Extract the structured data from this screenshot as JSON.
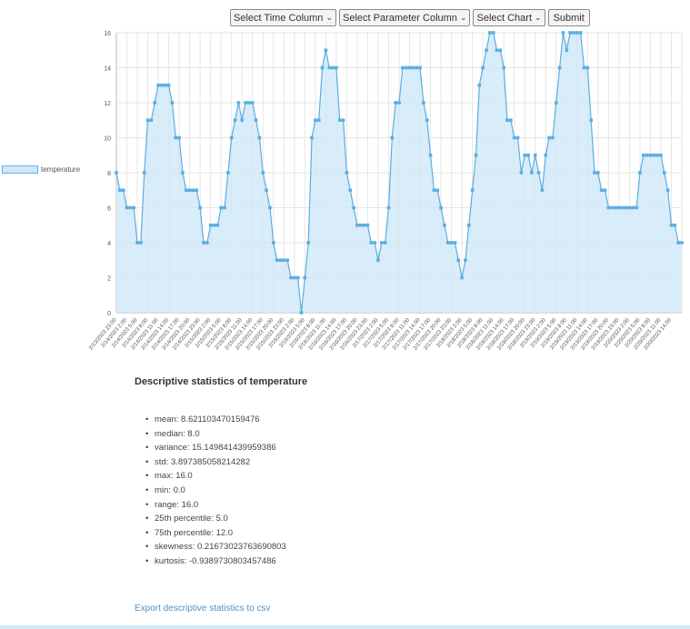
{
  "controls": {
    "time_select": "Select Time Column",
    "param_select": "Select Parameter Column",
    "chart_select": "Select Chart",
    "submit_label": "Submit"
  },
  "chart_data": {
    "type": "area",
    "series": [
      {
        "name": "temperature",
        "values": [
          8,
          7,
          7,
          6,
          6,
          6,
          4,
          4,
          8,
          11,
          11,
          12,
          13,
          13,
          13,
          13,
          12,
          10,
          10,
          8,
          7,
          7,
          7,
          7,
          6,
          4,
          4,
          5,
          5,
          5,
          6,
          6,
          8,
          10,
          11,
          12,
          11,
          12,
          12,
          12,
          11,
          10,
          8,
          7,
          6,
          4,
          3,
          3,
          3,
          3,
          2,
          2,
          2,
          0,
          2,
          4,
          10,
          11,
          11,
          14,
          15,
          14,
          14,
          14,
          11,
          11,
          8,
          7,
          6,
          5,
          5,
          5,
          5,
          4,
          4,
          3,
          4,
          4,
          6,
          10,
          12,
          12,
          14,
          14,
          14,
          14,
          14,
          14,
          12,
          11,
          9,
          7,
          7,
          6,
          5,
          4,
          4,
          4,
          3,
          2,
          3,
          5,
          7,
          9,
          13,
          14,
          15,
          16,
          16,
          15,
          15,
          14,
          11,
          11,
          10,
          10,
          8,
          9,
          9,
          8,
          9,
          8,
          7,
          9,
          10,
          10,
          12,
          14,
          16,
          15,
          16,
          16,
          16,
          16,
          14,
          14,
          11,
          8,
          8,
          7,
          7,
          6,
          6,
          6,
          6,
          6,
          6,
          6,
          6,
          6,
          8,
          9,
          9,
          9,
          9,
          9,
          9,
          8,
          7,
          5,
          5,
          4,
          4
        ]
      }
    ],
    "ylim": [
      0,
      16
    ],
    "y_ticks": [
      "0",
      "2",
      "4",
      "6",
      "8",
      "10",
      "12",
      "14",
      "16"
    ],
    "x_tick_labels": [
      "2/13/2023 23:00",
      "2/14/2023 2:00",
      "2/14/2023 5:00",
      "2/14/2023 8:00",
      "2/14/2023 11:00",
      "2/14/2023 14:00",
      "2/14/2023 17:00",
      "2/14/2023 20:00",
      "2/14/2023 23:00",
      "2/15/2023 2:00",
      "2/15/2023 5:00",
      "2/15/2023 8:00",
      "2/15/2023 11:00",
      "2/15/2023 14:00",
      "2/15/2023 17:00",
      "2/15/2023 20:00",
      "2/15/2023 23:00",
      "2/16/2023 2:00",
      "2/16/2023 5:00",
      "2/16/2023 8:00",
      "2/16/2023 11:00",
      "2/16/2023 14:00",
      "2/16/2023 17:00",
      "2/16/2023 20:00",
      "2/16/2023 23:00",
      "2/17/2023 2:00",
      "2/17/2023 5:00",
      "2/17/2023 8:00",
      "2/17/2023 11:00",
      "2/17/2023 14:00",
      "2/17/2023 17:00",
      "2/17/2023 20:00",
      "2/17/2023 23:00",
      "2/18/2023 2:00",
      "2/18/2023 5:00",
      "2/18/2023 8:00",
      "2/18/2023 11:00",
      "2/18/2023 14:00",
      "2/18/2023 17:00",
      "2/18/2023 20:00",
      "2/18/2023 23:00",
      "2/19/2023 2:00",
      "2/19/2023 5:00",
      "2/19/2023 8:00",
      "2/19/2023 11:00",
      "2/19/2023 14:00",
      "2/19/2023 17:00",
      "2/19/2023 20:00",
      "2/19/2023 23:00",
      "2/20/2023 2:00",
      "2/20/2023 5:00",
      "2/20/2023 8:00",
      "2/20/2023 11:00",
      "2/20/2023 14:00"
    ],
    "legend": "left",
    "grid": true,
    "colors": {
      "line": "#5aaee0",
      "fill": "#cfe7f7",
      "grid": "#e6e6e6"
    }
  },
  "stats": {
    "title": "Descriptive statistics of temperature",
    "items": [
      "mean: 8.621103470159476",
      "median: 8.0",
      "variance: 15.149841439959386",
      "std: 3.897385058214282",
      "max: 16.0",
      "min: 0.0",
      "range: 16.0",
      "25th percentile: 5.0",
      "75th percentile: 12.0",
      "skewness: 0.21673023763690803",
      "kurtosis: -0.9389730803457486"
    ],
    "export_link": "Export descriptive statistics to csv"
  }
}
